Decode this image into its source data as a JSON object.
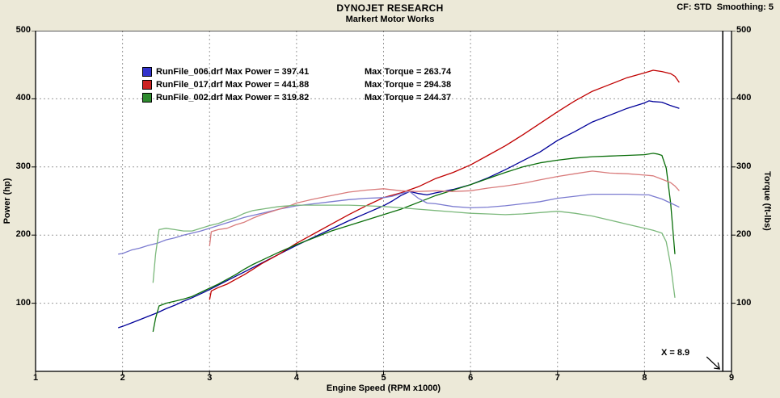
{
  "header": {
    "title": "DYNOJET RESEARCH",
    "subtitle": "Markert Motor Works",
    "settings": "CF: STD  Smoothing: 5"
  },
  "chart_data": {
    "type": "line",
    "title": "Markert Motor Works dyno run comparison",
    "xlabel": "Engine Speed (RPM x1000)",
    "ylabel_left": "Power (hp)",
    "ylabel_right": "Torque (ft-lbs)",
    "xlim": [
      1,
      9
    ],
    "ylim": [
      0,
      500
    ],
    "x_ticks": [
      1,
      2,
      3,
      4,
      5,
      6,
      7,
      8,
      9
    ],
    "y_ticks_left": [
      100,
      200,
      300,
      400,
      500
    ],
    "y_ticks_right": [
      100,
      200,
      300,
      400,
      500
    ],
    "grid": true,
    "legend_position": "top-left-inside",
    "cursor": {
      "x": 8.9,
      "label": "X = 8.9"
    },
    "colors": {
      "background": "#ece9d8",
      "plot_background": "#ffffff",
      "grid": "#999999",
      "axis": "#000000"
    },
    "legend": [
      {
        "swatch_color": "#3333cc",
        "label": "RunFile_006.drf Max Power = 397.41",
        "torque_label": "Max Torque = 263.74",
        "max_power": 397.41,
        "max_torque": 263.74
      },
      {
        "swatch_color": "#cc2222",
        "label": "RunFile_017.drf Max Power = 441.88",
        "torque_label": "Max Torque = 294.38",
        "max_power": 441.88,
        "max_torque": 294.38
      },
      {
        "swatch_color": "#2e8b2e",
        "label": "RunFile_002.drf Max Power = 319.82",
        "torque_label": "Max Torque = 244.37",
        "max_power": 319.82,
        "max_torque": 244.37
      }
    ],
    "series": [
      {
        "name": "RunFile_006 Power (hp)",
        "color": "#000099",
        "points": [
          [
            1.95,
            64
          ],
          [
            2.0,
            66
          ],
          [
            2.1,
            71
          ],
          [
            2.2,
            76
          ],
          [
            2.3,
            81
          ],
          [
            2.4,
            86
          ],
          [
            2.5,
            92
          ],
          [
            2.6,
            97
          ],
          [
            2.7,
            103
          ],
          [
            2.8,
            108
          ],
          [
            2.9,
            114
          ],
          [
            3.0,
            120
          ],
          [
            3.2,
            133
          ],
          [
            3.4,
            146
          ],
          [
            3.6,
            159
          ],
          [
            3.8,
            172
          ],
          [
            4.0,
            185
          ],
          [
            4.2,
            197
          ],
          [
            4.4,
            209
          ],
          [
            4.6,
            221
          ],
          [
            4.8,
            232
          ],
          [
            5.0,
            243
          ],
          [
            5.1,
            250
          ],
          [
            5.2,
            258
          ],
          [
            5.3,
            264
          ],
          [
            5.4,
            261
          ],
          [
            5.5,
            259
          ],
          [
            5.6,
            262
          ],
          [
            5.8,
            267
          ],
          [
            6.0,
            274
          ],
          [
            6.2,
            284
          ],
          [
            6.4,
            296
          ],
          [
            6.6,
            309
          ],
          [
            6.8,
            322
          ],
          [
            7.0,
            339
          ],
          [
            7.2,
            352
          ],
          [
            7.4,
            366
          ],
          [
            7.6,
            376
          ],
          [
            7.8,
            386
          ],
          [
            8.0,
            394
          ],
          [
            8.05,
            397
          ],
          [
            8.1,
            396
          ],
          [
            8.2,
            395
          ],
          [
            8.3,
            390
          ],
          [
            8.4,
            386
          ]
        ]
      },
      {
        "name": "RunFile_017 Power (hp)",
        "color": "#c00000",
        "points": [
          [
            3.0,
            105
          ],
          [
            3.02,
            118
          ],
          [
            3.1,
            123
          ],
          [
            3.2,
            128
          ],
          [
            3.3,
            135
          ],
          [
            3.4,
            142
          ],
          [
            3.5,
            150
          ],
          [
            3.6,
            158
          ],
          [
            3.7,
            165
          ],
          [
            3.8,
            172
          ],
          [
            3.9,
            180
          ],
          [
            4.0,
            188
          ],
          [
            4.2,
            202
          ],
          [
            4.4,
            216
          ],
          [
            4.6,
            230
          ],
          [
            4.8,
            243
          ],
          [
            5.0,
            255
          ],
          [
            5.2,
            262
          ],
          [
            5.4,
            271
          ],
          [
            5.6,
            283
          ],
          [
            5.8,
            292
          ],
          [
            6.0,
            303
          ],
          [
            6.2,
            317
          ],
          [
            6.4,
            331
          ],
          [
            6.6,
            347
          ],
          [
            6.8,
            364
          ],
          [
            7.0,
            381
          ],
          [
            7.2,
            397
          ],
          [
            7.4,
            411
          ],
          [
            7.6,
            421
          ],
          [
            7.8,
            431
          ],
          [
            8.0,
            438
          ],
          [
            8.1,
            442
          ],
          [
            8.2,
            440
          ],
          [
            8.3,
            437
          ],
          [
            8.35,
            433
          ],
          [
            8.4,
            424
          ]
        ]
      },
      {
        "name": "RunFile_002 Power (hp)",
        "color": "#0a6e0a",
        "points": [
          [
            2.35,
            58
          ],
          [
            2.38,
            78
          ],
          [
            2.42,
            96
          ],
          [
            2.5,
            100
          ],
          [
            2.6,
            103
          ],
          [
            2.7,
            106
          ],
          [
            2.8,
            110
          ],
          [
            2.9,
            116
          ],
          [
            3.0,
            122
          ],
          [
            3.1,
            128
          ],
          [
            3.2,
            135
          ],
          [
            3.3,
            142
          ],
          [
            3.4,
            150
          ],
          [
            3.5,
            157
          ],
          [
            3.6,
            163
          ],
          [
            3.8,
            175
          ],
          [
            4.0,
            186
          ],
          [
            4.2,
            196
          ],
          [
            4.4,
            206
          ],
          [
            4.6,
            214
          ],
          [
            4.8,
            222
          ],
          [
            5.0,
            230
          ],
          [
            5.2,
            238
          ],
          [
            5.4,
            248
          ],
          [
            5.6,
            258
          ],
          [
            5.8,
            266
          ],
          [
            6.0,
            274
          ],
          [
            6.2,
            283
          ],
          [
            6.4,
            292
          ],
          [
            6.6,
            300
          ],
          [
            6.8,
            306
          ],
          [
            7.0,
            310
          ],
          [
            7.2,
            313
          ],
          [
            7.4,
            315
          ],
          [
            7.6,
            316
          ],
          [
            7.8,
            317
          ],
          [
            8.0,
            318
          ],
          [
            8.1,
            320
          ],
          [
            8.15,
            319
          ],
          [
            8.2,
            317
          ],
          [
            8.25,
            298
          ],
          [
            8.3,
            247
          ],
          [
            8.35,
            172
          ]
        ]
      },
      {
        "name": "RunFile_006 Torque (ft-lbs)",
        "color": "#7b7bd0",
        "points": [
          [
            1.95,
            172
          ],
          [
            2.0,
            173
          ],
          [
            2.1,
            178
          ],
          [
            2.2,
            181
          ],
          [
            2.3,
            185
          ],
          [
            2.4,
            188
          ],
          [
            2.5,
            193
          ],
          [
            2.6,
            196
          ],
          [
            2.7,
            200
          ],
          [
            2.8,
            203
          ],
          [
            2.9,
            206
          ],
          [
            3.0,
            210
          ],
          [
            3.2,
            218
          ],
          [
            3.4,
            226
          ],
          [
            3.6,
            232
          ],
          [
            3.8,
            238
          ],
          [
            4.0,
            243
          ],
          [
            4.2,
            246
          ],
          [
            4.4,
            249
          ],
          [
            4.6,
            252
          ],
          [
            4.8,
            254
          ],
          [
            5.0,
            255
          ],
          [
            5.1,
            257
          ],
          [
            5.2,
            261
          ],
          [
            5.3,
            264
          ],
          [
            5.4,
            254
          ],
          [
            5.5,
            247
          ],
          [
            5.6,
            246
          ],
          [
            5.8,
            242
          ],
          [
            6.0,
            240
          ],
          [
            6.2,
            241
          ],
          [
            6.4,
            243
          ],
          [
            6.6,
            246
          ],
          [
            6.8,
            249
          ],
          [
            7.0,
            254
          ],
          [
            7.2,
            257
          ],
          [
            7.4,
            260
          ],
          [
            7.6,
            260
          ],
          [
            7.8,
            260
          ],
          [
            8.0,
            259
          ],
          [
            8.05,
            259
          ],
          [
            8.1,
            257
          ],
          [
            8.2,
            253
          ],
          [
            8.3,
            247
          ],
          [
            8.4,
            241
          ]
        ]
      },
      {
        "name": "RunFile_017 Torque (ft-lbs)",
        "color": "#d97b7b",
        "points": [
          [
            3.0,
            184
          ],
          [
            3.02,
            205
          ],
          [
            3.1,
            208
          ],
          [
            3.2,
            210
          ],
          [
            3.3,
            215
          ],
          [
            3.4,
            219
          ],
          [
            3.5,
            225
          ],
          [
            3.6,
            230
          ],
          [
            3.7,
            234
          ],
          [
            3.8,
            238
          ],
          [
            3.9,
            242
          ],
          [
            4.0,
            247
          ],
          [
            4.2,
            253
          ],
          [
            4.4,
            258
          ],
          [
            4.6,
            263
          ],
          [
            4.8,
            266
          ],
          [
            5.0,
            268
          ],
          [
            5.2,
            265
          ],
          [
            5.4,
            264
          ],
          [
            5.6,
            265
          ],
          [
            5.8,
            264
          ],
          [
            6.0,
            265
          ],
          [
            6.2,
            269
          ],
          [
            6.4,
            272
          ],
          [
            6.6,
            276
          ],
          [
            6.8,
            281
          ],
          [
            7.0,
            286
          ],
          [
            7.2,
            290
          ],
          [
            7.4,
            294
          ],
          [
            7.6,
            291
          ],
          [
            7.8,
            290
          ],
          [
            8.0,
            288
          ],
          [
            8.1,
            287
          ],
          [
            8.2,
            282
          ],
          [
            8.3,
            277
          ],
          [
            8.35,
            272
          ],
          [
            8.4,
            265
          ]
        ]
      },
      {
        "name": "RunFile_002 Torque (ft-lbs)",
        "color": "#7bb87b",
        "points": [
          [
            2.35,
            130
          ],
          [
            2.38,
            172
          ],
          [
            2.42,
            208
          ],
          [
            2.5,
            210
          ],
          [
            2.6,
            208
          ],
          [
            2.7,
            206
          ],
          [
            2.8,
            206
          ],
          [
            2.9,
            210
          ],
          [
            3.0,
            214
          ],
          [
            3.1,
            217
          ],
          [
            3.2,
            222
          ],
          [
            3.3,
            226
          ],
          [
            3.4,
            232
          ],
          [
            3.5,
            236
          ],
          [
            3.6,
            238
          ],
          [
            3.8,
            242
          ],
          [
            4.0,
            244
          ],
          [
            4.2,
            244
          ],
          [
            4.4,
            244
          ],
          [
            4.6,
            244
          ],
          [
            4.8,
            243
          ],
          [
            5.0,
            242
          ],
          [
            5.2,
            240
          ],
          [
            5.4,
            238
          ],
          [
            5.6,
            236
          ],
          [
            5.8,
            234
          ],
          [
            6.0,
            232
          ],
          [
            6.2,
            231
          ],
          [
            6.4,
            230
          ],
          [
            6.6,
            231
          ],
          [
            6.8,
            233
          ],
          [
            7.0,
            235
          ],
          [
            7.2,
            232
          ],
          [
            7.4,
            228
          ],
          [
            7.6,
            222
          ],
          [
            7.8,
            216
          ],
          [
            8.0,
            210
          ],
          [
            8.1,
            207
          ],
          [
            8.2,
            203
          ],
          [
            8.25,
            190
          ],
          [
            8.3,
            156
          ],
          [
            8.35,
            108
          ]
        ]
      }
    ]
  }
}
